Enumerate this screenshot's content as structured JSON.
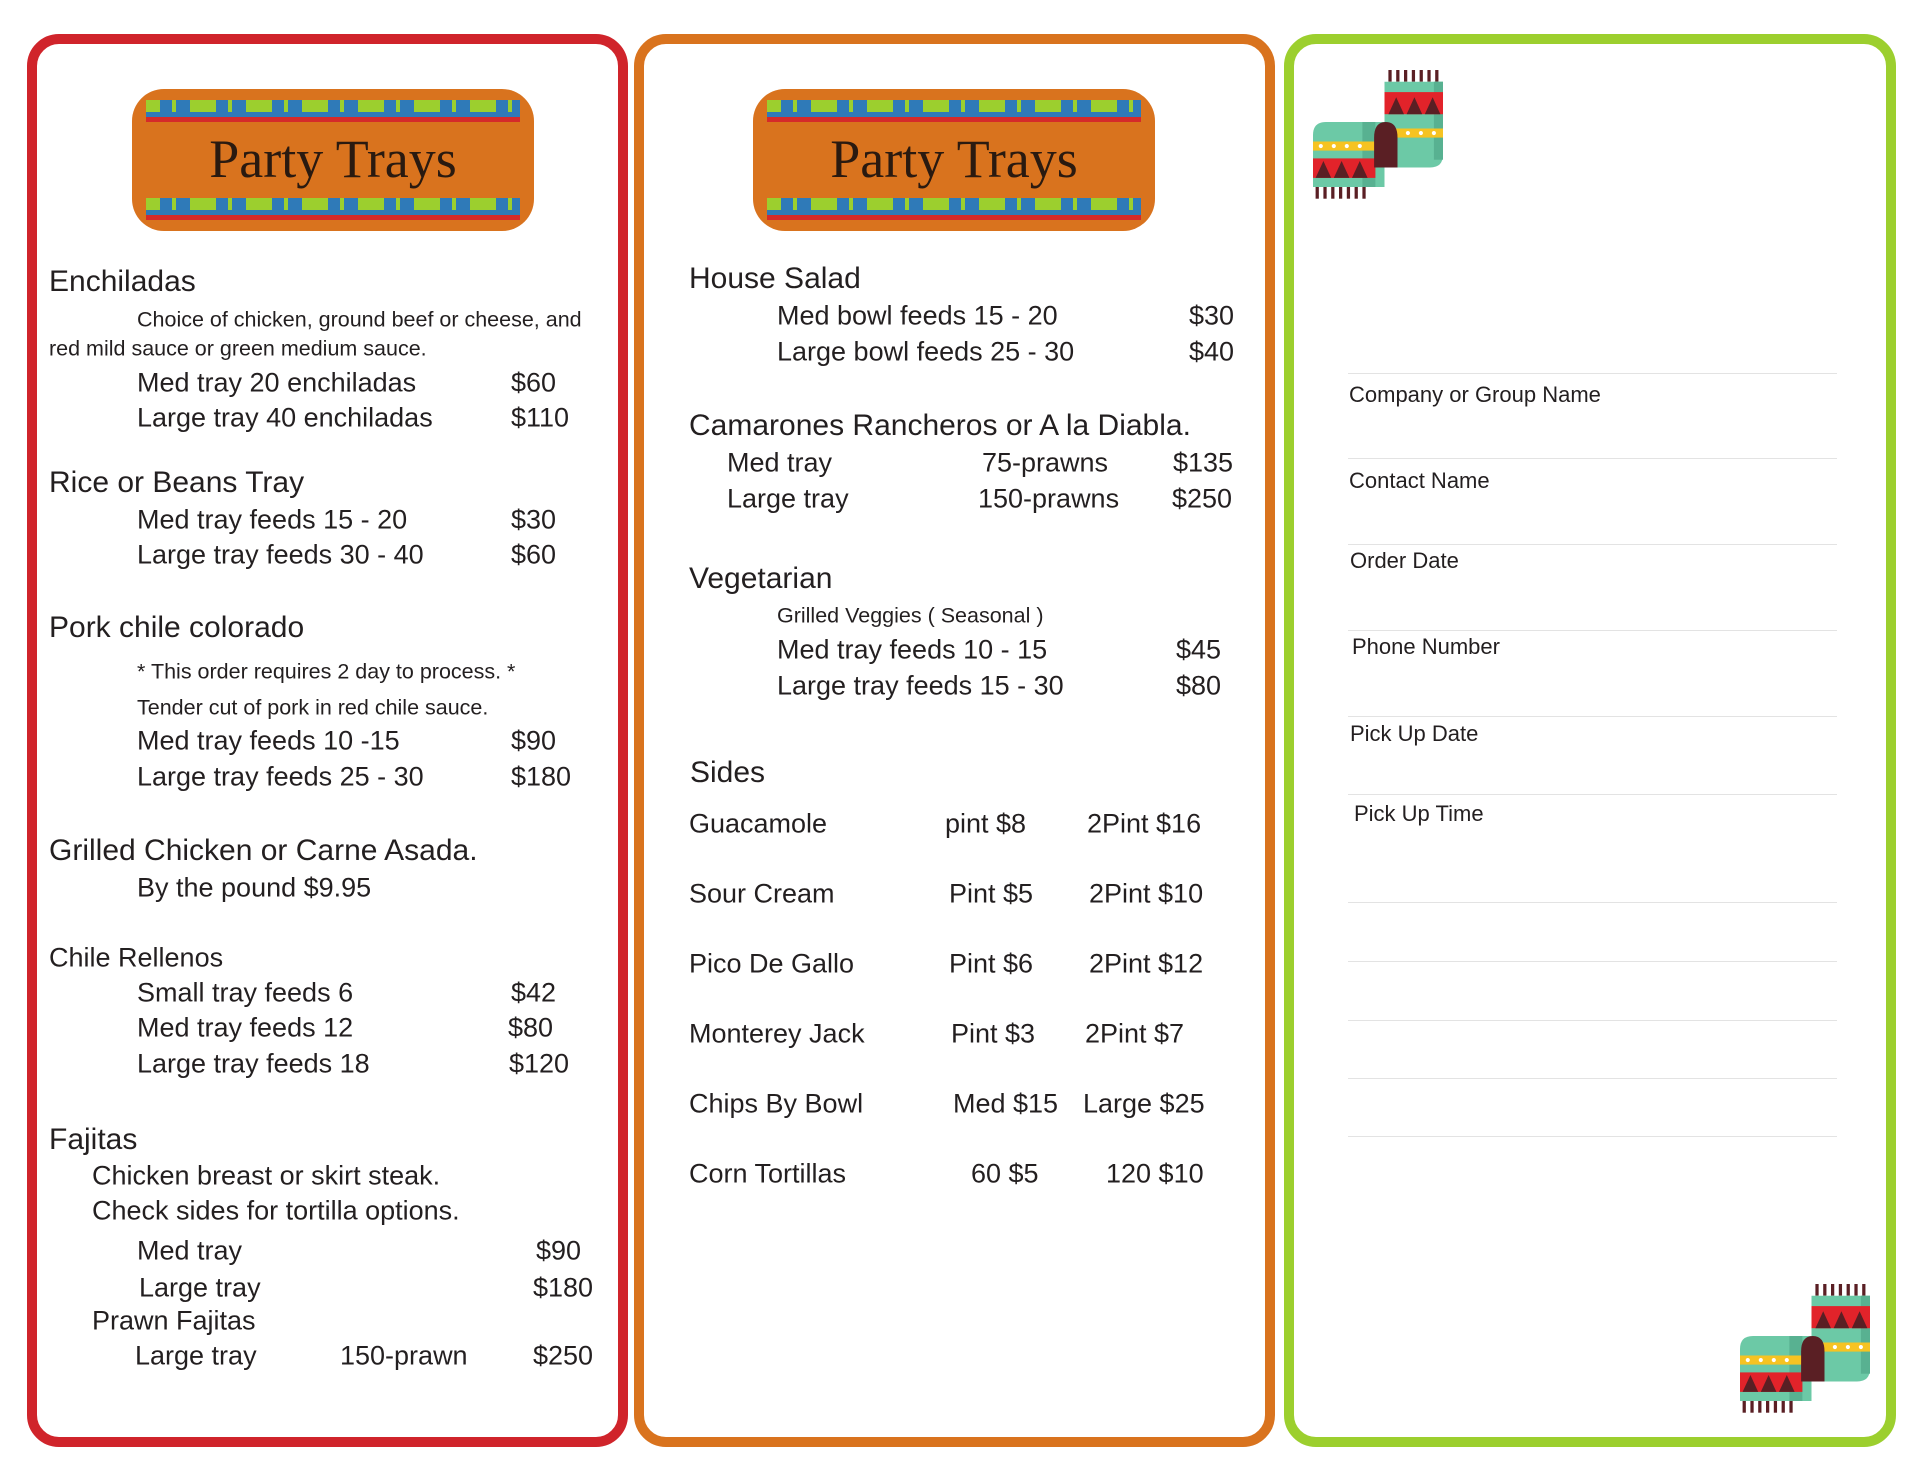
{
  "colors": {
    "left_border": "#d0242b",
    "middle_border": "#d9731e",
    "right_border": "#9ccf2e",
    "banner": "#d9731e"
  },
  "banner_title": "Party Trays",
  "left": {
    "enchiladas": {
      "title": "Enchiladas",
      "desc1": "Choice of chicken, ground beef or cheese, and",
      "desc2": "red mild sauce or green medium sauce.",
      "items": [
        {
          "label": "Med tray 20 enchiladas",
          "price": "$60"
        },
        {
          "label": "Large tray 40 enchiladas",
          "price": "$110"
        }
      ]
    },
    "rice": {
      "title": "Rice or Beans Tray",
      "items": [
        {
          "label": "Med tray feeds 15 - 20",
          "price": "$30"
        },
        {
          "label": "Large tray feeds 30 - 40",
          "price": "$60"
        }
      ]
    },
    "pork": {
      "title": "Pork chile colorado",
      "note": "* This order requires 2 day to process. *",
      "desc": "Tender cut of pork in red chile sauce.",
      "items": [
        {
          "label": "Med tray feeds 10 -15",
          "price": "$90"
        },
        {
          "label": "Large tray feeds 25 - 30",
          "price": "$180"
        }
      ]
    },
    "grilled": {
      "title": "Grilled Chicken or Carne Asada.",
      "desc": "By the pound $9.95"
    },
    "rellenos": {
      "title": "Chile Rellenos",
      "items": [
        {
          "label": "Small tray feeds 6",
          "price": "$42"
        },
        {
          "label": "Med tray feeds 12",
          "price": "$80"
        },
        {
          "label": "Large tray feeds 18",
          "price": "$120"
        }
      ]
    },
    "fajitas": {
      "title": "Fajitas",
      "desc1": "Chicken breast or skirt steak.",
      "desc2": "Check sides for tortilla options.",
      "items": [
        {
          "label": "Med tray",
          "price": "$90"
        },
        {
          "label": "Large tray",
          "price": "$180"
        }
      ],
      "prawn_title": "Prawn Fajitas",
      "prawn": {
        "label": "Large tray",
        "qty": "150-prawn",
        "price": "$250"
      }
    }
  },
  "middle": {
    "salad": {
      "title": "House Salad",
      "items": [
        {
          "label": "Med bowl feeds 15 - 20",
          "price": "$30"
        },
        {
          "label": "Large bowl feeds 25 - 30",
          "price": "$40"
        }
      ]
    },
    "camarones": {
      "title": "Camarones Rancheros or A la Diabla.",
      "items": [
        {
          "label": "Med tray",
          "qty": "75-prawns",
          "price": "$135"
        },
        {
          "label": "Large tray",
          "qty": "150-prawns",
          "price": "$250"
        }
      ]
    },
    "veg": {
      "title": "Vegetarian",
      "desc": "Grilled Veggies ( Seasonal )",
      "items": [
        {
          "label": "Med tray feeds 10 - 15",
          "price": "$45"
        },
        {
          "label": "Large tray feeds 15 - 30",
          "price": "$80"
        }
      ]
    },
    "sides": {
      "title": "Sides",
      "items": [
        {
          "name": "Guacamole",
          "a": "pint $8",
          "b": "2Pint $16"
        },
        {
          "name": "Sour Cream",
          "a": "Pint $5",
          "b": "2Pint $10"
        },
        {
          "name": "Pico De Gallo",
          "a": "Pint $6",
          "b": "2Pint $12"
        },
        {
          "name": "Monterey Jack",
          "a": "Pint $3",
          "b": "2Pint $7"
        },
        {
          "name": "Chips By Bowl",
          "a": "Med $15",
          "b": "Large $25"
        },
        {
          "name": "Corn Tortillas",
          "a": "60 $5",
          "b": "120 $10"
        }
      ]
    }
  },
  "form": {
    "fields": [
      "Company or Group Name",
      "Contact Name",
      "Order Date",
      "Phone Number",
      "Pick Up Date",
      "Pick Up Time"
    ]
  },
  "icons": {
    "decoration": "poncho-scarf-icon"
  }
}
